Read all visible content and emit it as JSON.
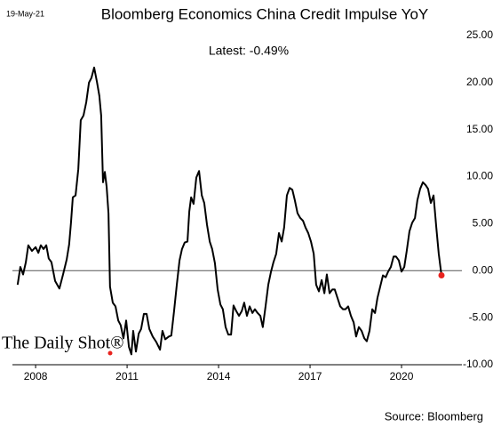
{
  "date": "19-May-21",
  "watermark": "The Daily Shot®",
  "source": "Source: Bloomberg",
  "chart_data": {
    "type": "line",
    "title": "Bloomberg Economics China Credit Impulse YoY",
    "annotation": "Latest:  -0.49%",
    "xlim": [
      2007.24,
      2021.98
    ],
    "xticks": [
      2008,
      2011,
      2014,
      2017,
      2020
    ],
    "ylim": [
      -10,
      25
    ],
    "yticks": [
      {
        "value": 25,
        "label": "25.00"
      },
      {
        "value": 20,
        "label": "20.00"
      },
      {
        "value": 15,
        "label": "15.00"
      },
      {
        "value": 10,
        "label": "10.00"
      },
      {
        "value": 5,
        "label": "5.00"
      },
      {
        "value": 0,
        "label": "0.00"
      },
      {
        "value": -5,
        "label": "-5.00"
      },
      {
        "value": -10,
        "label": "-10.00"
      }
    ],
    "zero_line": true,
    "latest_marker_color": "#e8231e",
    "x": [
      2007.41,
      2007.5,
      2007.59,
      2007.68,
      2007.76,
      2007.88,
      2008.0,
      2008.09,
      2008.17,
      2008.26,
      2008.35,
      2008.43,
      2008.52,
      2008.64,
      2008.78,
      2008.9,
      2009.02,
      2009.1,
      2009.16,
      2009.22,
      2009.31,
      2009.4,
      2009.48,
      2009.57,
      2009.66,
      2009.75,
      2009.83,
      2009.92,
      2010.01,
      2010.09,
      2010.15,
      2010.21,
      2010.27,
      2010.33,
      2010.39,
      2010.44,
      2010.53,
      2010.62,
      2010.71,
      2010.79,
      2010.88,
      2010.97,
      2011.06,
      2011.14,
      2011.2,
      2011.29,
      2011.38,
      2011.46,
      2011.55,
      2011.64,
      2011.73,
      2011.84,
      2011.96,
      2012.08,
      2012.16,
      2012.25,
      2012.37,
      2012.45,
      2012.54,
      2012.63,
      2012.72,
      2012.8,
      2012.89,
      2012.98,
      2013.04,
      2013.1,
      2013.18,
      2013.27,
      2013.36,
      2013.45,
      2013.53,
      2013.62,
      2013.71,
      2013.79,
      2013.88,
      2013.97,
      2014.06,
      2014.14,
      2014.23,
      2014.32,
      2014.41,
      2014.49,
      2014.58,
      2014.67,
      2014.76,
      2014.84,
      2014.93,
      2015.02,
      2015.11,
      2015.19,
      2015.28,
      2015.37,
      2015.45,
      2015.54,
      2015.63,
      2015.72,
      2015.8,
      2015.89,
      2015.98,
      2016.07,
      2016.15,
      2016.24,
      2016.33,
      2016.42,
      2016.5,
      2016.59,
      2016.68,
      2016.77,
      2016.85,
      2016.94,
      2017.03,
      2017.12,
      2017.2,
      2017.29,
      2017.38,
      2017.47,
      2017.55,
      2017.64,
      2017.73,
      2017.81,
      2017.9,
      2017.99,
      2018.08,
      2018.16,
      2018.25,
      2018.34,
      2018.43,
      2018.51,
      2018.6,
      2018.69,
      2018.78,
      2018.86,
      2018.95,
      2019.04,
      2019.13,
      2019.21,
      2019.3,
      2019.39,
      2019.48,
      2019.56,
      2019.65,
      2019.74,
      2019.82,
      2019.91,
      2020.0,
      2020.09,
      2020.17,
      2020.26,
      2020.35,
      2020.44,
      2020.52,
      2020.61,
      2020.7,
      2020.79,
      2020.87,
      2020.96,
      2021.05,
      2021.14,
      2021.22,
      2021.31
    ],
    "series": [
      {
        "color": "#000000",
        "values": [
          -1.5,
          0.4,
          -0.4,
          0.9,
          2.7,
          2.1,
          2.5,
          1.9,
          2.7,
          2.3,
          2.7,
          1.3,
          0.9,
          -1.1,
          -1.9,
          -0.4,
          1.2,
          2.8,
          5.1,
          7.8,
          8.0,
          10.8,
          16.0,
          16.5,
          17.9,
          20.0,
          20.5,
          21.6,
          20.1,
          18.6,
          16.5,
          9.4,
          10.5,
          8.9,
          6.1,
          -1.7,
          -3.4,
          -3.8,
          -5.3,
          -5.8,
          -7.2,
          -5.3,
          -8.1,
          -8.9,
          -6.4,
          -8.6,
          -6.7,
          -6.2,
          -4.6,
          -4.6,
          -6.2,
          -7.0,
          -7.6,
          -8.4,
          -6.4,
          -7.3,
          -7.0,
          -6.9,
          -4.3,
          -1.5,
          1.1,
          2.3,
          3.0,
          3.1,
          6.3,
          7.8,
          7.1,
          9.9,
          10.6,
          8.0,
          7.2,
          4.9,
          3.1,
          2.3,
          0.8,
          -2.0,
          -3.6,
          -4.1,
          -6.0,
          -6.8,
          -6.8,
          -3.7,
          -4.3,
          -4.8,
          -4.3,
          -3.4,
          -4.8,
          -3.8,
          -4.5,
          -4.1,
          -4.5,
          -4.8,
          -6.0,
          -3.8,
          -1.5,
          -0.1,
          0.9,
          1.8,
          4.0,
          3.1,
          4.6,
          8.0,
          8.8,
          8.6,
          7.5,
          6.1,
          5.6,
          5.3,
          4.6,
          4.0,
          3.1,
          1.8,
          -1.5,
          -2.2,
          -1.0,
          -2.4,
          -0.4,
          -2.4,
          -2.0,
          -2.0,
          -2.9,
          -3.8,
          -4.1,
          -4.1,
          -3.8,
          -4.8,
          -5.5,
          -7.0,
          -6.0,
          -6.4,
          -7.2,
          -7.5,
          -6.4,
          -4.1,
          -4.5,
          -2.9,
          -1.7,
          -0.5,
          -0.7,
          -0.1,
          0.4,
          1.5,
          1.5,
          1.1,
          -0.1,
          0.4,
          2.1,
          4.2,
          5.1,
          5.6,
          7.5,
          8.7,
          9.4,
          9.1,
          8.7,
          7.2,
          8.0,
          4.6,
          1.8,
          -0.49
        ]
      }
    ]
  }
}
